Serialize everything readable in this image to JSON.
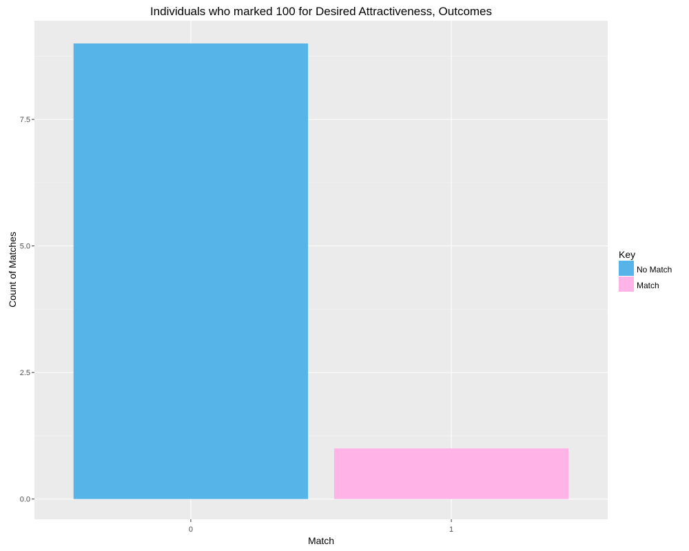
{
  "chart_data": {
    "type": "bar",
    "title": "Individuals who marked 100 for Desired Attractiveness, Outcomes",
    "xlabel": "Match",
    "ylabel": "Count of Matches",
    "categories": [
      "0",
      "1"
    ],
    "values": [
      9,
      1
    ],
    "bar_fills": [
      "#56b4e9",
      "#ffb3e6"
    ],
    "ylim": [
      -0.4,
      9.45
    ],
    "yticks": [
      0,
      2.5,
      5,
      7.5
    ],
    "ytick_labels": [
      "0.0",
      "2.5",
      "5.0",
      "7.5"
    ],
    "grid": true,
    "legend": {
      "title": "Key",
      "position": "right",
      "items": [
        {
          "label": "No Match",
          "color": "#56b4e9"
        },
        {
          "label": "Match",
          "color": "#ffb3e6"
        }
      ]
    }
  },
  "colors": {
    "panel_background": "#ebebeb",
    "grid_major": "#ffffff",
    "grid_minor": "#f5f5f5"
  }
}
